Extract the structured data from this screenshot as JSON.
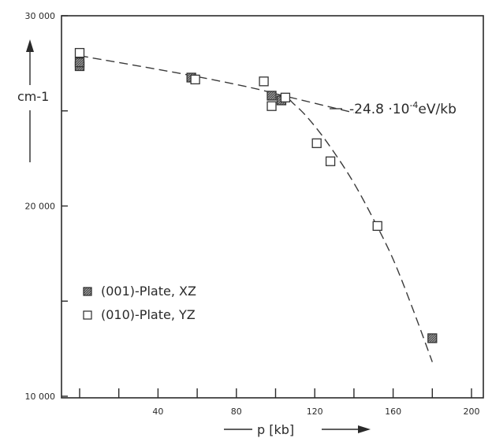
{
  "chart_data": {
    "type": "scatter",
    "title": "",
    "xlabel": "p [kb]",
    "ylabel": "cm-1",
    "xlim": [
      0,
      200
    ],
    "ylim": [
      10000,
      30000
    ],
    "x_ticks": [
      {
        "value": 0,
        "label": ""
      },
      {
        "value": 20,
        "label": ""
      },
      {
        "value": 40,
        "label": "40"
      },
      {
        "value": 60,
        "label": ""
      },
      {
        "value": 80,
        "label": "80"
      },
      {
        "value": 100,
        "label": ""
      },
      {
        "value": 120,
        "label": "120"
      },
      {
        "value": 140,
        "label": ""
      },
      {
        "value": 160,
        "label": "160"
      },
      {
        "value": 180,
        "label": ""
      },
      {
        "value": 200,
        "label": "200"
      }
    ],
    "y_ticks": [
      {
        "value": 10000,
        "label": "10 000"
      },
      {
        "value": 15000,
        "label": ""
      },
      {
        "value": 20000,
        "label": "20 000"
      },
      {
        "value": 25000,
        "label": ""
      },
      {
        "value": 30000,
        "label": "30 000"
      }
    ],
    "grid": false,
    "legend_position": "left-middle",
    "series": [
      {
        "name": "(001)-Plate, XZ",
        "marker": "filled-square",
        "color": "#333333",
        "points": [
          {
            "x": 0,
            "y": 27350
          },
          {
            "x": 0,
            "y": 27550
          },
          {
            "x": 57,
            "y": 26750
          },
          {
            "x": 98,
            "y": 25800
          },
          {
            "x": 103,
            "y": 25550
          },
          {
            "x": 180,
            "y": 13050
          }
        ]
      },
      {
        "name": "(010)-Plate, YZ",
        "marker": "open-square",
        "color": "#333333",
        "points": [
          {
            "x": 0,
            "y": 28050
          },
          {
            "x": 59,
            "y": 26650
          },
          {
            "x": 94,
            "y": 26550
          },
          {
            "x": 98,
            "y": 25250
          },
          {
            "x": 105,
            "y": 25700
          },
          {
            "x": 121,
            "y": 23300
          },
          {
            "x": 128,
            "y": 22350
          },
          {
            "x": 152,
            "y": 18950
          }
        ]
      }
    ],
    "fit_lines": [
      {
        "style": "dashed",
        "points": [
          {
            "x": 0,
            "y": 27900
          },
          {
            "x": 60,
            "y": 26800
          },
          {
            "x": 100,
            "y": 25900
          },
          {
            "x": 110,
            "y": 25300
          },
          {
            "x": 120,
            "y": 24200
          },
          {
            "x": 130,
            "y": 22800
          },
          {
            "x": 140,
            "y": 21200
          },
          {
            "x": 150,
            "y": 19300
          },
          {
            "x": 160,
            "y": 17200
          },
          {
            "x": 170,
            "y": 14600
          },
          {
            "x": 180,
            "y": 11800
          }
        ]
      },
      {
        "style": "dashed",
        "points": [
          {
            "x": 100,
            "y": 25900
          },
          {
            "x": 140,
            "y": 24900
          }
        ]
      }
    ],
    "annotations": [
      {
        "text_before": "-24.8 ·10",
        "superscript": "-4",
        "text_after": "eV/kb"
      }
    ]
  }
}
